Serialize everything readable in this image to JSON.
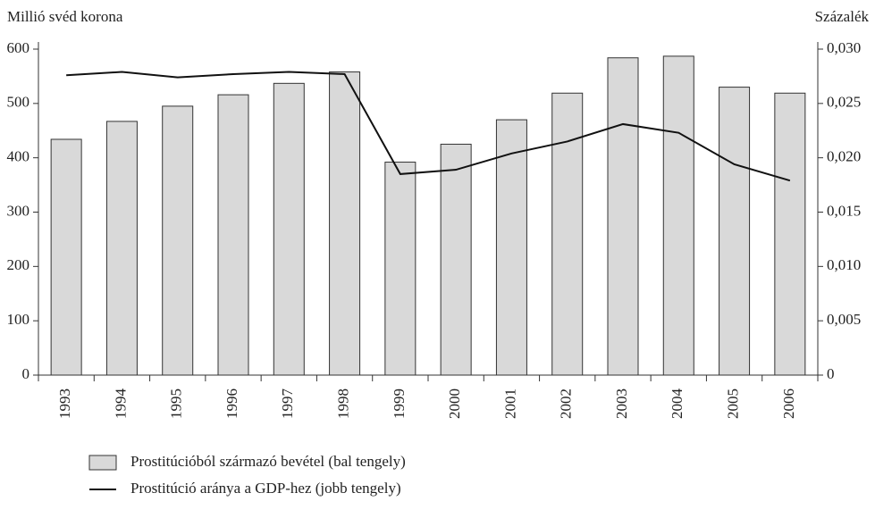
{
  "chart_data": {
    "type": "bar",
    "y_label": "Millió svéd korona",
    "y2_label": "Százalék",
    "categories": [
      "1993",
      "1994",
      "1995",
      "1996",
      "1997",
      "1998",
      "1999",
      "2000",
      "2001",
      "2002",
      "2003",
      "2004",
      "2005",
      "2006"
    ],
    "series": [
      {
        "name": "Prostitúcióból származó bevétel (bal tengely)",
        "type": "bar",
        "color": "#d9d9d9",
        "values": [
          434,
          467,
          495,
          516,
          537,
          558,
          392,
          425,
          470,
          519,
          584,
          587,
          530,
          519
        ]
      },
      {
        "name": "Prostitúció aránya a GDP-hez (jobb tengely)",
        "type": "line",
        "axis": "y2",
        "color": "#111111",
        "values": [
          0.0276,
          0.0279,
          0.0274,
          0.0277,
          0.0279,
          0.0277,
          0.0185,
          0.0189,
          0.0204,
          0.0215,
          0.0231,
          0.0223,
          0.0194,
          0.0179
        ]
      }
    ],
    "ylim": [
      0,
      600
    ],
    "yticks": [
      0,
      100,
      200,
      300,
      400,
      500,
      600
    ],
    "y2lim": [
      0,
      0.03
    ],
    "y2ticks": [
      0,
      {
        "value": 0.005,
        "label": "0,005"
      },
      {
        "value": 0.01,
        "label": "0,010"
      },
      {
        "value": 0.015,
        "label": "0,015"
      },
      {
        "value": 0.02,
        "label": "0,020"
      },
      {
        "value": 0.025,
        "label": "0,025"
      },
      {
        "value": 0.03,
        "label": "0,030"
      }
    ],
    "legend": "bottom-left"
  }
}
